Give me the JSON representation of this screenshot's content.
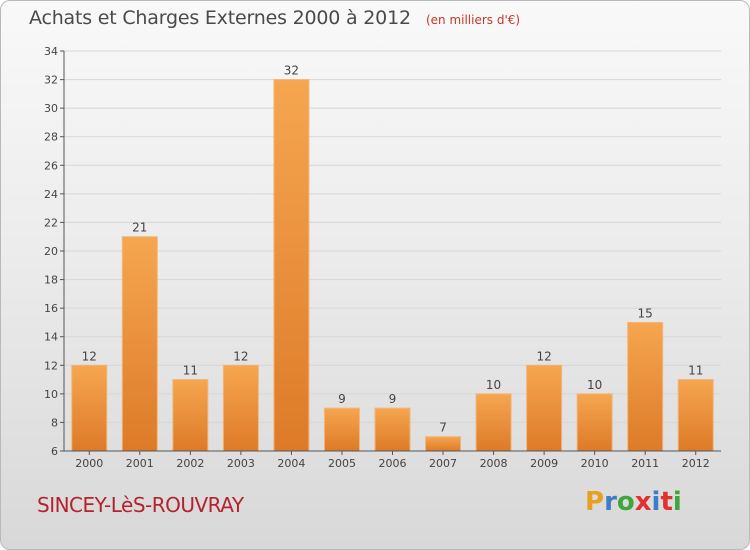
{
  "header": {
    "title": "Achats et Charges Externes 2000 à 2012",
    "subtitle": "(en milliers d'€)"
  },
  "footer": {
    "commune": "SINCEY-LèS-ROUVRAY",
    "brand": "Proxiti",
    "brand_colors": [
      "#e8a020",
      "#3a7dc8",
      "#3fa63a",
      "#e03030",
      "#3a7dc8",
      "#e03030",
      "#3fa63a"
    ]
  },
  "colors": {
    "bar_light": "#f6a650",
    "bar_dark": "#dd7a28",
    "axis": "#555555",
    "grid": "#d6d6d6"
  },
  "chart_data": {
    "type": "bar",
    "categories": [
      "2000",
      "2001",
      "2002",
      "2003",
      "2004",
      "2005",
      "2006",
      "2007",
      "2008",
      "2009",
      "2010",
      "2011",
      "2012"
    ],
    "values": [
      12,
      21,
      11,
      12,
      32,
      9,
      9,
      7,
      10,
      12,
      10,
      15,
      11
    ],
    "ylim": [
      6,
      34
    ],
    "yticks": [
      6,
      8,
      10,
      12,
      14,
      16,
      18,
      20,
      22,
      24,
      26,
      28,
      30,
      32,
      34
    ],
    "grid": true,
    "data_labels": true
  }
}
